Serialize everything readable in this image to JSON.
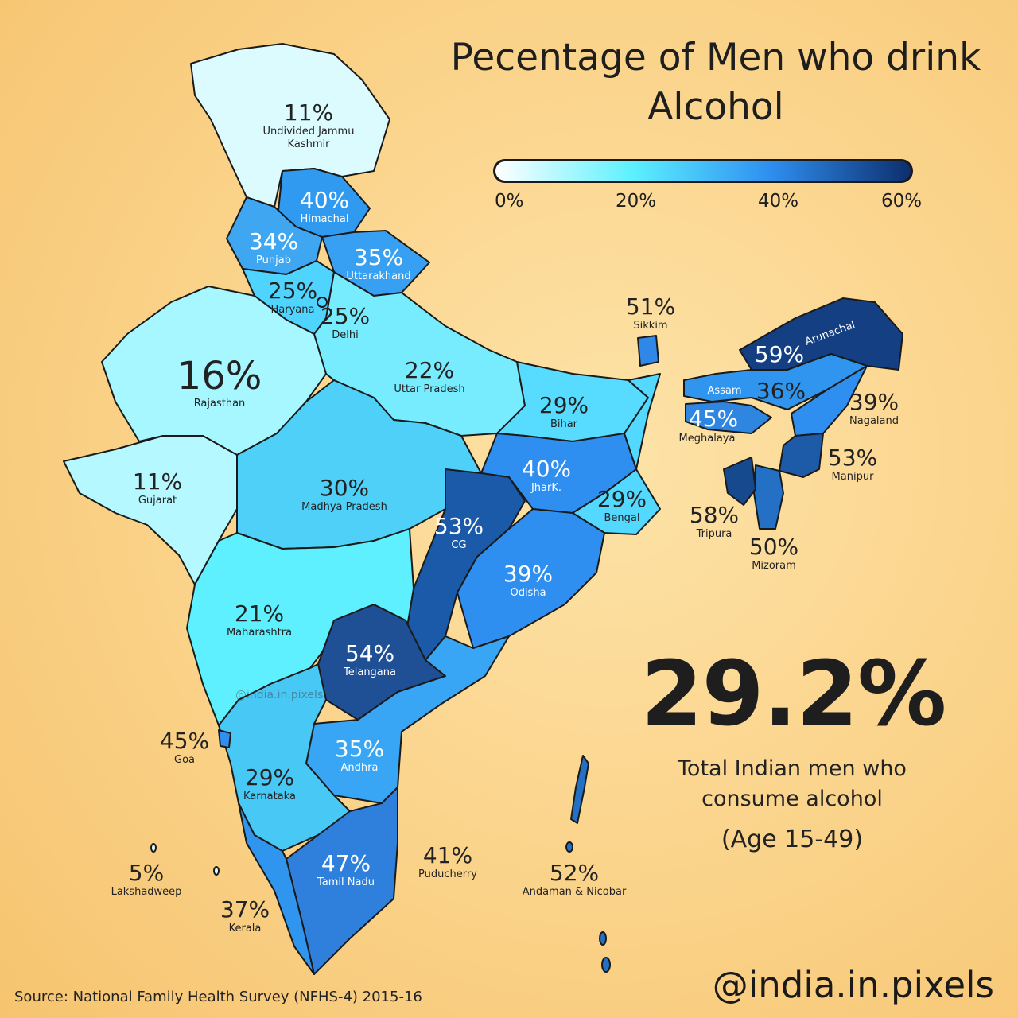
{
  "title": "Pecentage of Men who drink Alcohol",
  "legend": {
    "ticks": [
      "0%",
      "20%",
      "40%",
      "60%"
    ],
    "colors": [
      "#ffffff",
      "#5cf1ff",
      "#2f8ff0",
      "#0d2f6e"
    ]
  },
  "states": [
    {
      "name": "Undivided Jammu Kashmir",
      "pct": "11%"
    },
    {
      "name": "Himachal",
      "pct": "40%"
    },
    {
      "name": "Punjab",
      "pct": "34%"
    },
    {
      "name": "Uttarakhand",
      "pct": "35%"
    },
    {
      "name": "Haryana",
      "pct": "25%"
    },
    {
      "name": "Delhi",
      "pct": "25%"
    },
    {
      "name": "Rajasthan",
      "pct": "16%"
    },
    {
      "name": "Uttar Pradesh",
      "pct": "22%"
    },
    {
      "name": "Bihar",
      "pct": "29%"
    },
    {
      "name": "Sikkim",
      "pct": "51%"
    },
    {
      "name": "Arunachal",
      "pct": "59%"
    },
    {
      "name": "Assam",
      "pct": "36%"
    },
    {
      "name": "Meghalaya",
      "pct": "45%"
    },
    {
      "name": "Nagaland",
      "pct": "39%"
    },
    {
      "name": "Manipur",
      "pct": "53%"
    },
    {
      "name": "Tripura",
      "pct": "58%"
    },
    {
      "name": "Mizoram",
      "pct": "50%"
    },
    {
      "name": "Gujarat",
      "pct": "11%"
    },
    {
      "name": "Madhya Pradesh",
      "pct": "30%"
    },
    {
      "name": "JharK.",
      "pct": "40%"
    },
    {
      "name": "Bengal",
      "pct": "29%"
    },
    {
      "name": "CG",
      "pct": "53%"
    },
    {
      "name": "Odisha",
      "pct": "39%"
    },
    {
      "name": "Maharashtra",
      "pct": "21%"
    },
    {
      "name": "Telangana",
      "pct": "54%"
    },
    {
      "name": "Goa",
      "pct": "45%"
    },
    {
      "name": "Andhra",
      "pct": "35%"
    },
    {
      "name": "Karnataka",
      "pct": "29%"
    },
    {
      "name": "Tamil Nadu",
      "pct": "47%"
    },
    {
      "name": "Puducherry",
      "pct": "41%"
    },
    {
      "name": "Kerala",
      "pct": "37%"
    },
    {
      "name": "Lakshadweep",
      "pct": "5%"
    },
    {
      "name": "Andaman & Nicobar",
      "pct": "52%"
    }
  ],
  "total": {
    "value": "29.2%",
    "caption": "Total Indian men who consume alcohol",
    "age": "(Age 15-49)"
  },
  "watermark": "@india.in.pixels",
  "source": "Source: National Family Health Survey (NFHS-4) 2015-16",
  "handle": "@india.in.pixels"
}
